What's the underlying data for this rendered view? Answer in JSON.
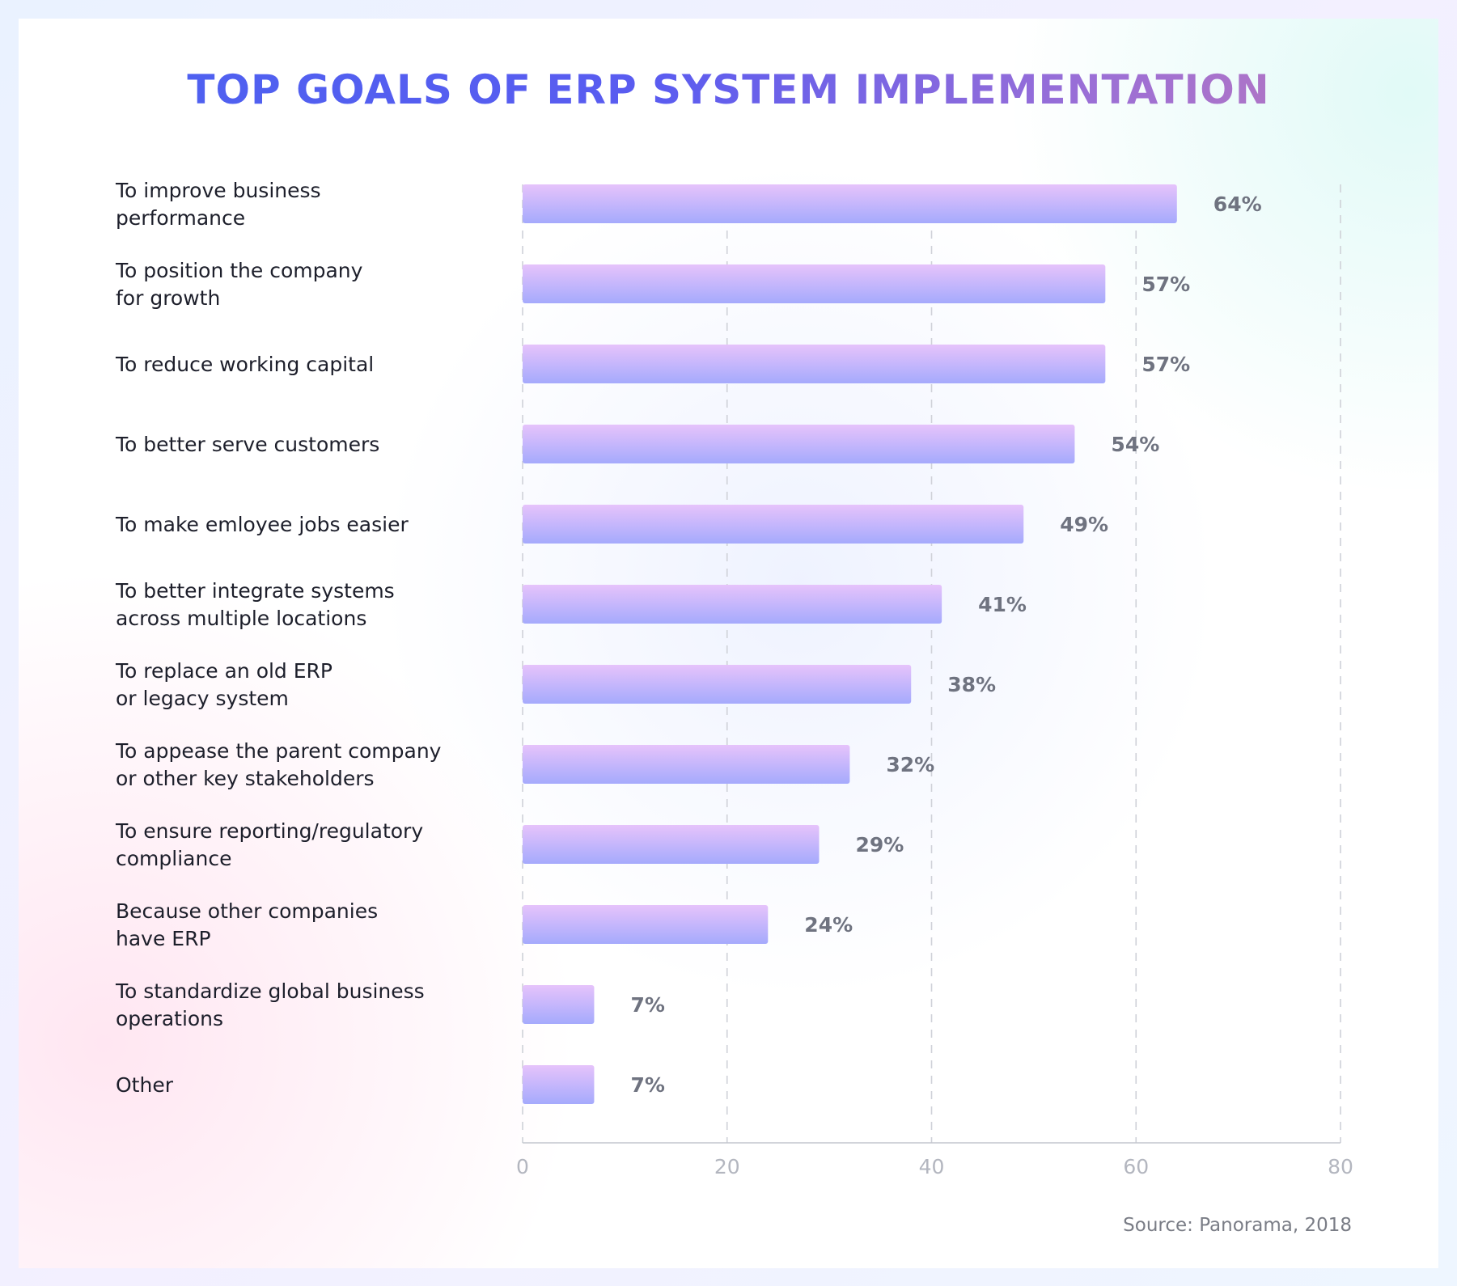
{
  "title": "TOP GOALS OF ERP SYSTEM IMPLEMENTATION",
  "source": "Source: Panorama, 2018",
  "colors": {
    "bar_top": "#e6c3fb",
    "bar_bottom": "#a5aafc",
    "title_start": "#4a62f0",
    "title_end": "#c07ab8",
    "value_text": "#6f7380",
    "grid": "#cfd1d8"
  },
  "chart_data": {
    "type": "bar",
    "orientation": "horizontal",
    "categories": [
      [
        "To improve business",
        "performance"
      ],
      [
        "To position the company",
        "for growth"
      ],
      [
        "To reduce working capital"
      ],
      [
        "To better serve customers"
      ],
      [
        "To make emloyee jobs easier"
      ],
      [
        "To better integrate systems",
        "across multiple locations"
      ],
      [
        "To replace an old ERP",
        "or legacy system"
      ],
      [
        "To appease the parent company",
        "or other key stakeholders"
      ],
      [
        "To ensure reporting/regulatory",
        "compliance"
      ],
      [
        "Because other companies",
        "have ERP"
      ],
      [
        "To standardize global business",
        "operations"
      ],
      [
        "Other"
      ]
    ],
    "values": [
      64,
      57,
      57,
      54,
      49,
      41,
      38,
      32,
      29,
      24,
      7,
      7
    ],
    "value_labels": [
      "64%",
      "57%",
      "57%",
      "54%",
      "49%",
      "41%",
      "38%",
      "32%",
      "29%",
      "24%",
      "7%",
      "7%"
    ],
    "xlim": [
      0,
      80
    ],
    "xticks": [
      "0",
      "20",
      "40",
      "60",
      "80"
    ],
    "grid": true
  }
}
